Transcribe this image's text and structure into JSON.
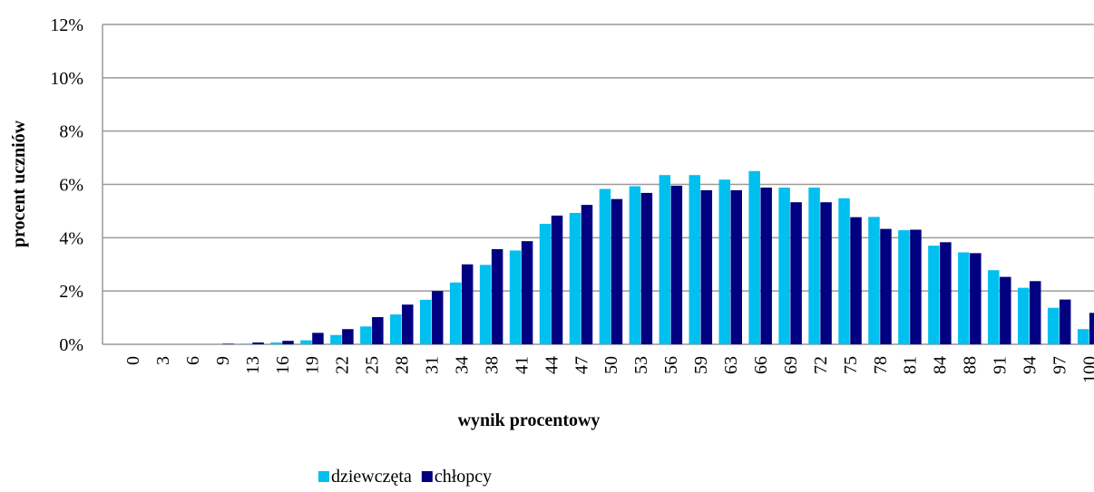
{
  "chart_data": {
    "type": "bar",
    "xlabel": "wynik procentowy",
    "ylabel": "procent uczniów",
    "categories": [
      "0",
      "3",
      "6",
      "9",
      "13",
      "16",
      "19",
      "22",
      "25",
      "28",
      "31",
      "34",
      "38",
      "41",
      "44",
      "47",
      "50",
      "53",
      "56",
      "59",
      "63",
      "66",
      "69",
      "72",
      "75",
      "78",
      "81",
      "84",
      "88",
      "91",
      "94",
      "97",
      "100"
    ],
    "series": [
      {
        "name": "dziewczęta",
        "color": "#00c0f0",
        "values": [
          0,
          0,
          0,
          0,
          0.02,
          0.07,
          0.15,
          0.35,
          0.67,
          1.12,
          1.67,
          2.32,
          2.98,
          3.52,
          4.52,
          4.93,
          5.83,
          5.93,
          6.35,
          6.35,
          6.18,
          6.5,
          5.88,
          5.88,
          5.48,
          4.78,
          4.28,
          3.7,
          3.45,
          2.78,
          2.12,
          1.37,
          0.57
        ]
      },
      {
        "name": "chłopcy",
        "color": "#000080",
        "values": [
          0,
          0,
          0,
          0.02,
          0.07,
          0.13,
          0.43,
          0.57,
          1.02,
          1.49,
          2.0,
          3.0,
          3.57,
          3.87,
          4.83,
          5.23,
          5.45,
          5.68,
          5.95,
          5.78,
          5.78,
          5.88,
          5.33,
          5.33,
          4.77,
          4.33,
          4.3,
          3.83,
          3.42,
          2.53,
          2.37,
          1.68,
          1.18
        ]
      }
    ],
    "ylim": [
      0,
      12
    ],
    "yticks": [
      {
        "value": 0,
        "label": "0%"
      },
      {
        "value": 2,
        "label": "2%"
      },
      {
        "value": 4,
        "label": "4%"
      },
      {
        "value": 6,
        "label": "6%"
      },
      {
        "value": 8,
        "label": "8%"
      },
      {
        "value": 10,
        "label": "10%"
      },
      {
        "value": 12,
        "label": "12%"
      }
    ],
    "grid": true,
    "legend": "bottom"
  }
}
